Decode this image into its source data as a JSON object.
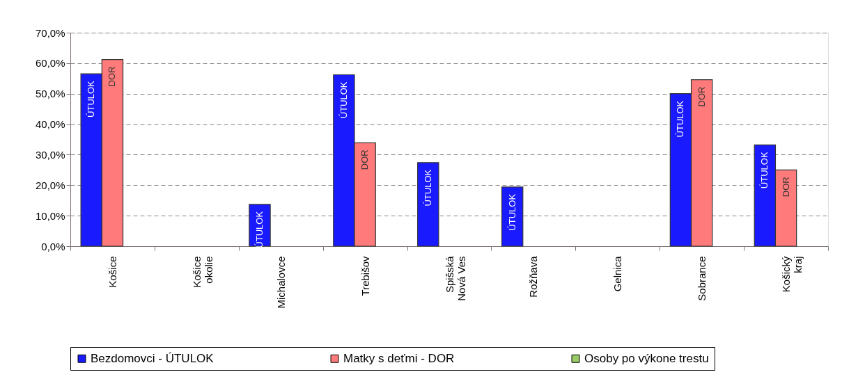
{
  "chart_data": {
    "type": "bar",
    "categories": [
      "Košice",
      "Košice\nokolie",
      "Michalovce",
      "Trebišov",
      "Spišská\nNová Ves",
      "Rožňava",
      "Gelnica",
      "Sobrance",
      "Košický\nkraj"
    ],
    "series": [
      {
        "name": "Bezdomovci - ÚTULOK",
        "color": "#1a1aff",
        "values": [
          56.5,
          null,
          13.7,
          56.2,
          27.4,
          19.4,
          null,
          50.0,
          33.2
        ],
        "value_labels": [
          "ÚTULOK",
          null,
          "ÚTULOK",
          "ÚTULOK",
          "ÚTULOK",
          "ÚTULOK",
          null,
          "ÚTULOK",
          "ÚTULOK"
        ]
      },
      {
        "name": "Matky s deťmi - DOR",
        "color": "#ff7b7b",
        "values": [
          61.2,
          null,
          null,
          33.9,
          null,
          null,
          null,
          54.6,
          25.0
        ],
        "value_labels": [
          "DOR",
          null,
          null,
          "DOR",
          null,
          null,
          null,
          "DOR",
          "DOR"
        ]
      },
      {
        "name": "Osoby po výkone trestu",
        "color": "#99cc66",
        "values": [
          null,
          null,
          null,
          null,
          null,
          null,
          null,
          null,
          null
        ]
      }
    ],
    "ylim": [
      0,
      70
    ],
    "yticks": [
      {
        "value": 0,
        "label": "0,0%"
      },
      {
        "value": 10,
        "label": "10,0%"
      },
      {
        "value": 20,
        "label": "20,0%"
      },
      {
        "value": 30,
        "label": "30,0%"
      },
      {
        "value": 40,
        "label": "40,0%"
      },
      {
        "value": 50,
        "label": "50,0%"
      },
      {
        "value": 60,
        "label": "60,0%"
      },
      {
        "value": 70,
        "label": "70,0%"
      }
    ],
    "grid": "y",
    "legend": "bottom"
  }
}
